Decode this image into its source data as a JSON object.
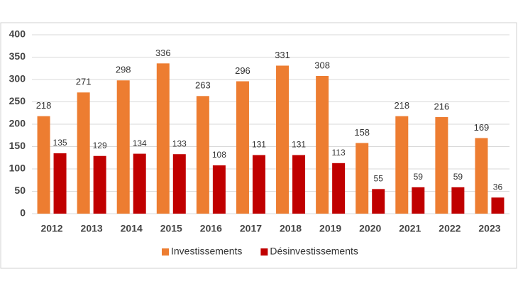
{
  "chart_data": {
    "type": "bar",
    "categories": [
      "2012",
      "2013",
      "2014",
      "2015",
      "2016",
      "2017",
      "2018",
      "2019",
      "2020",
      "2021",
      "2022",
      "2023"
    ],
    "series": [
      {
        "name": "Investissements",
        "color": "#ed7d31",
        "values": [
          218,
          271,
          298,
          336,
          263,
          296,
          331,
          308,
          158,
          218,
          216,
          169
        ]
      },
      {
        "name": "Désinvestissements",
        "color": "#c00000",
        "values": [
          135,
          129,
          134,
          133,
          108,
          131,
          131,
          113,
          55,
          59,
          59,
          36
        ]
      }
    ],
    "ylim": [
      0,
      400
    ],
    "yticks": [
      0,
      50,
      100,
      150,
      200,
      250,
      300,
      350,
      400
    ],
    "grid": true,
    "legend": "bottom"
  }
}
